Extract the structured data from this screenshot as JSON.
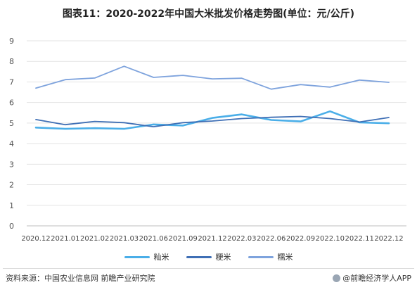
{
  "title": "图表11：2020-2022年中国大米批发价格走势图(单位：元/公斤)",
  "source_text": "资料来源：中国农业信息网 前瞻产业研究院",
  "brand_text": "@前瞻经济学人APP",
  "chart_data": {
    "type": "line",
    "categories": [
      "2020.12",
      "2021.01",
      "2021.02",
      "2021.03",
      "2021.06",
      "2021.09",
      "2021.12",
      "2022.03",
      "2022.06",
      "2022.09",
      "2022.10",
      "2022.11",
      "2022.12"
    ],
    "y_ticks": [
      "0",
      "1",
      "2",
      "3",
      "4",
      "5",
      "6",
      "7",
      "8",
      "9"
    ],
    "ylim": [
      0,
      9
    ],
    "grid": true,
    "legend_position": "bottom",
    "series": [
      {
        "name": "籼米",
        "color": "#4aaee8",
        "values": [
          4.78,
          4.72,
          4.75,
          4.72,
          4.93,
          4.88,
          5.25,
          5.42,
          5.15,
          5.08,
          5.57,
          5.03,
          4.99
        ]
      },
      {
        "name": "粳米",
        "color": "#3f6fb5",
        "values": [
          5.17,
          4.92,
          5.08,
          5.02,
          4.82,
          5.02,
          5.1,
          5.22,
          5.28,
          5.32,
          5.22,
          5.05,
          5.27
        ]
      },
      {
        "name": "糯米",
        "color": "#7ea3dd",
        "values": [
          6.7,
          7.11,
          7.19,
          7.76,
          7.22,
          7.32,
          7.15,
          7.18,
          6.65,
          6.87,
          6.75,
          7.09,
          6.98
        ]
      }
    ]
  }
}
